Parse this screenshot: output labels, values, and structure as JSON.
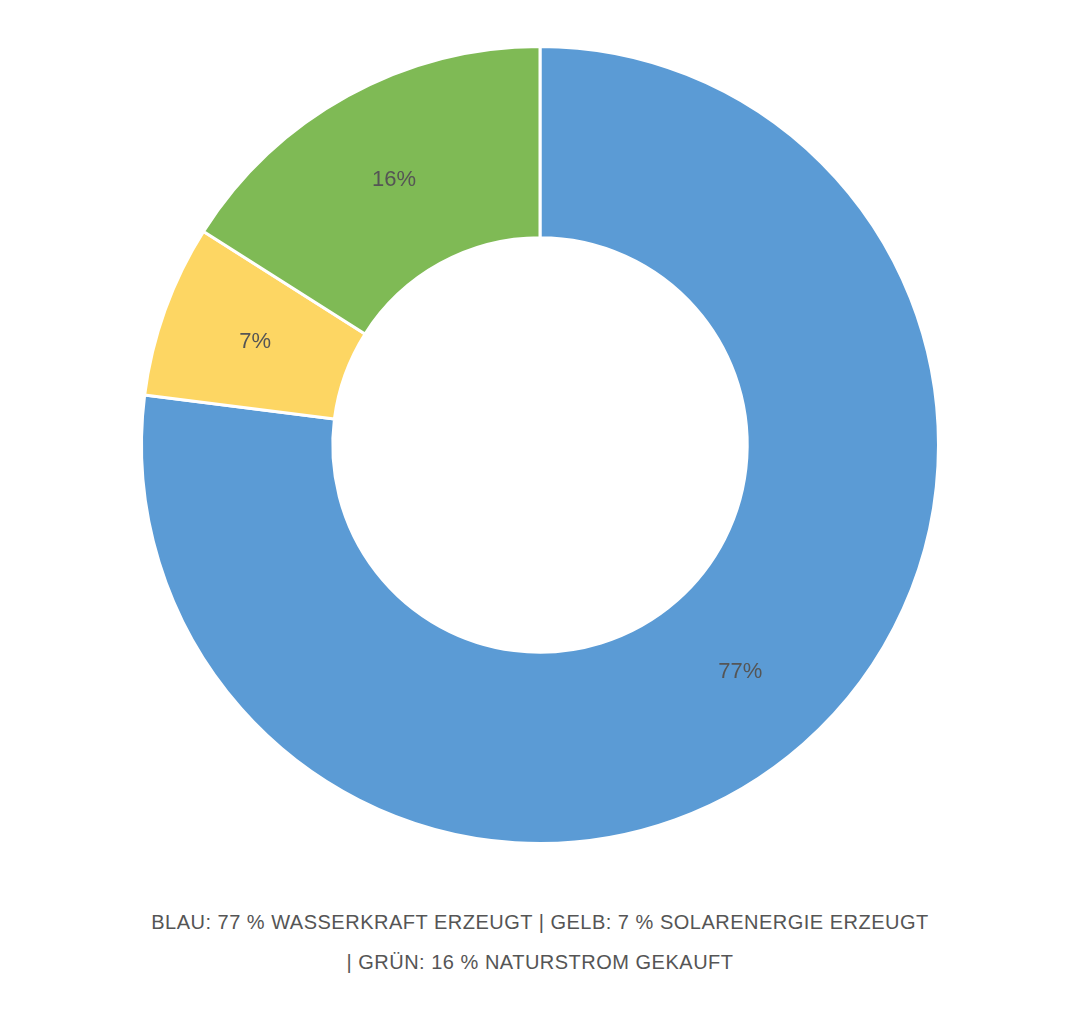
{
  "chart_data": {
    "type": "doughnut",
    "values": [
      77,
      7,
      16
    ],
    "value_labels": [
      "77%",
      "7%",
      "16%"
    ],
    "colors": [
      "#5b9bd5",
      "#fdd663",
      "#7fba55"
    ],
    "data_labels": true,
    "annotations": [
      "BLAU: 77 % WASSERKRAFT ERZEUGT | GELB: 7 % SOLARENERGIE ERZEUGT",
      "| GRÜN: 16 % NATURSTROM GEKAUFT"
    ]
  }
}
